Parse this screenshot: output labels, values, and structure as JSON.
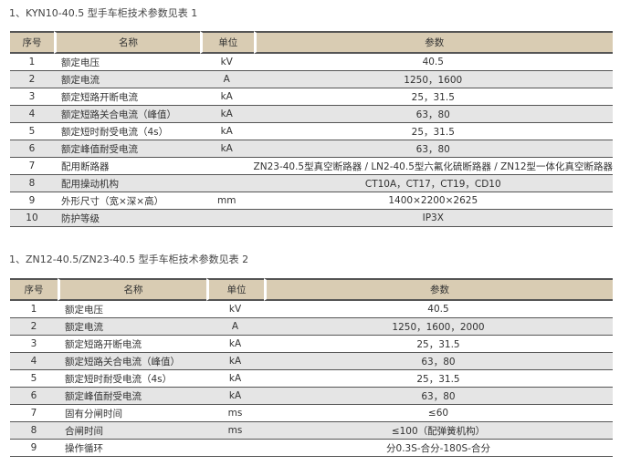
{
  "tables": [
    {
      "title": "1、KYN10-40.5 型手车柜技术参数见表 1",
      "headers": [
        "序号",
        "名称",
        "单位",
        "参数"
      ],
      "rows": [
        [
          "1",
          "额定电压",
          "kV",
          "40.5"
        ],
        [
          "2",
          "额定电流",
          "A",
          "1250，1600"
        ],
        [
          "3",
          "额定短路开断电流",
          "kA",
          "25，31.5"
        ],
        [
          "4",
          "额定短路关合电流（峰值）",
          "kA",
          "63，80"
        ],
        [
          "5",
          "额定短时耐受电流（4s）",
          "kA",
          "25，31.5"
        ],
        [
          "6",
          "额定峰值耐受电流",
          "kA",
          "63，80"
        ],
        [
          "7",
          "配用断路器",
          "",
          "ZN23-40.5型真空断路器 / LN2-40.5型六氟化硫断路器 / ZN12型一体化真空断路器"
        ],
        [
          "8",
          "配用操动机构",
          "",
          "CT10A，CT17，CT19，CD10"
        ],
        [
          "9",
          "外形尺寸（宽×深×高）",
          "mm",
          "1400×2200×2625"
        ],
        [
          "10",
          "防护等级",
          "",
          "IP3X"
        ]
      ]
    },
    {
      "title": "1、ZN12-40.5/ZN23-40.5 型手车柜技术参数见表 2",
      "headers": [
        "序号",
        "名称",
        "单位",
        "参数"
      ],
      "rows": [
        [
          "1",
          "额定电压",
          "kV",
          "40.5"
        ],
        [
          "2",
          "额定电流",
          "A",
          "1250，1600，2000"
        ],
        [
          "3",
          "额定短路开断电流",
          "kA",
          "25，31.5"
        ],
        [
          "4",
          "额定短路关合电流（峰值）",
          "kA",
          "63，80"
        ],
        [
          "5",
          "额定短时耐受电流（4s）",
          "kA",
          "25，31.5"
        ],
        [
          "6",
          "额定峰值耐受电流",
          "kA",
          "63，80"
        ],
        [
          "7",
          "固有分闸时间",
          "ms",
          "≤60"
        ],
        [
          "8",
          "合闸时间",
          "ms",
          "≤100（配弹簧机构）"
        ],
        [
          "9",
          "操作循环",
          "",
          "分0.3S-合分-180S-合分"
        ]
      ]
    }
  ],
  "colors": {
    "header_bg": "#d9ccb3",
    "alt_row_bg": "#e5e5e5"
  }
}
